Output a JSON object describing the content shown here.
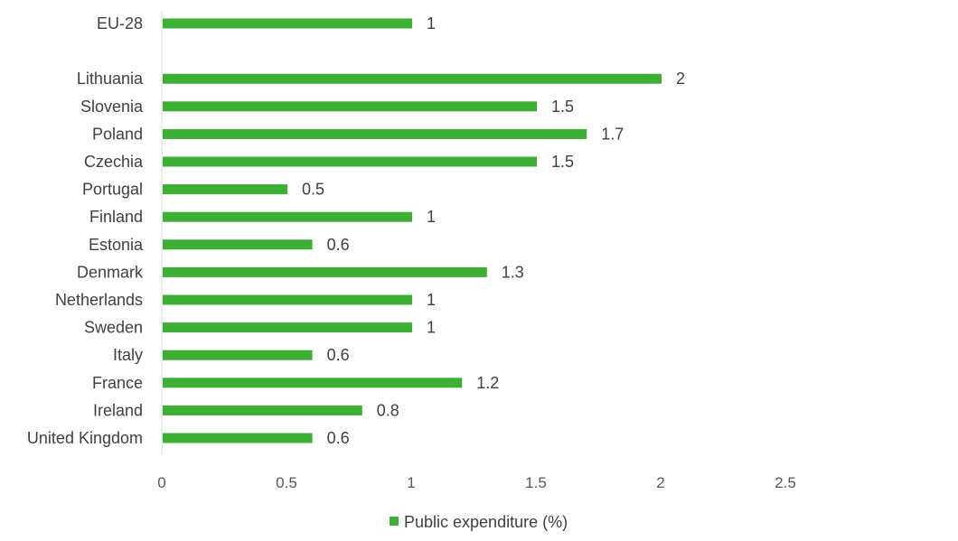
{
  "chart_data": {
    "type": "bar",
    "orientation": "horizontal",
    "categories": [
      "EU-28",
      "",
      "Lithuania",
      "Slovenia",
      "Poland",
      "Czechia",
      "Portugal",
      "Finland",
      "Estonia",
      "Denmark",
      "Netherlands",
      "Sweden",
      "Italy",
      "France",
      "Ireland",
      "United Kingdom"
    ],
    "series": [
      {
        "name": "Public expenditure (%)",
        "values": [
          1,
          null,
          2,
          1.5,
          1.7,
          1.5,
          0.5,
          1,
          0.6,
          1.3,
          1,
          1,
          0.6,
          1.2,
          0.8,
          0.6
        ],
        "data_labels": [
          "1",
          "",
          "2",
          "1.5",
          "1.7",
          "1.5",
          "0.5",
          "1",
          "0.6",
          "1.3",
          "1",
          "1",
          "0.6",
          "1.2",
          "0.8",
          "0.6"
        ],
        "color": "#3daf35"
      }
    ],
    "xlim": [
      0,
      2.5
    ],
    "xticks": [
      0,
      0.5,
      1,
      1.5,
      2,
      2.5
    ],
    "xtick_labels": [
      "0",
      "0.5",
      "1",
      "1.5",
      "2",
      "2.5"
    ],
    "grid": false,
    "legend": {
      "position": "bottom",
      "label": "Public expenditure (%)"
    },
    "axis_color": "#d9d9d9",
    "text_color": "#404040"
  }
}
